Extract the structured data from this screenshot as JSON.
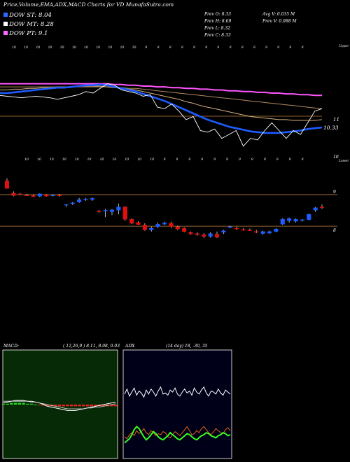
{
  "header": {
    "title": "Price,Volume,EMA,ADX,MACD Charts for VD MunafaSutra.com",
    "dow_st": "DOW ST: 8.04",
    "dow_mt": "DOW MT: 8.28",
    "dow_pt": "DOW PT: 9.1",
    "prev_o": "Prev O: 8.33",
    "prev_h": "Prev H: 8.69",
    "prev_l": "Prev L: 8.32",
    "prev_c": "Prev C: 8.33",
    "avg_v": "Avg V: 0.035 M",
    "prev_v": "Prev V: 0.988 M"
  },
  "colors": {
    "dow_st": "#2a6cff",
    "dow_mt": "#ffffff",
    "dow_pt": "#ff66ff",
    "up_candle": "#1e5cff",
    "down_candle": "#e01010",
    "price_line": "#c08040",
    "macd_bg": "#062a06",
    "macd_border": "#ffffff",
    "adx_bg": "#000018"
  },
  "upper_panel": {
    "top_label": "Upper",
    "bottom_label": "Lower",
    "right_labels": [
      "11",
      "10.33",
      "10"
    ],
    "top_ticks": [
      "10",
      "10",
      "10",
      "10",
      "10",
      "10",
      "10",
      "10",
      "10",
      "10",
      "10",
      "9",
      "9",
      "9",
      "9",
      "9",
      "9",
      "9",
      "9",
      "9",
      "9",
      "9",
      "9",
      "9",
      "9"
    ],
    "bottom_ticks": [
      "10",
      "10",
      "10",
      "10",
      "10",
      "10",
      "10",
      "10",
      "10",
      "10",
      "10",
      "9",
      "9",
      "9",
      "9",
      "9",
      "9",
      "9",
      "9",
      "9",
      "9",
      "9",
      "9"
    ]
  },
  "chart_data": [
    {
      "type": "line",
      "panel": "ema",
      "series": [
        {
          "name": "price",
          "values": [
            10.75,
            10.74,
            10.73,
            10.72,
            10.73,
            10.74,
            10.73,
            10.72,
            10.7,
            10.72,
            10.74,
            10.76,
            10.8,
            10.78,
            10.84,
            10.9,
            10.88,
            10.82,
            10.8,
            10.78,
            10.74,
            10.76,
            10.6,
            10.58,
            10.64,
            10.55,
            10.44,
            10.48,
            10.3,
            10.28,
            10.32,
            10.2,
            10.25,
            10.3,
            10.1,
            10.2,
            10.18,
            10.3,
            10.4,
            10.3,
            10.2,
            10.3,
            10.25,
            10.4,
            10.55,
            10.58
          ]
        },
        {
          "values": [
            10.78,
            10.78,
            10.79,
            10.8,
            10.81,
            10.82,
            10.83,
            10.84,
            10.85,
            10.85,
            10.86,
            10.87,
            10.88,
            10.88,
            10.89,
            10.88,
            10.86,
            10.84,
            10.82,
            10.8,
            10.77,
            10.74,
            10.71,
            10.68,
            10.64,
            10.6,
            10.56,
            10.52,
            10.48,
            10.44,
            10.41,
            10.38,
            10.35,
            10.33,
            10.31,
            10.29,
            10.28,
            10.27,
            10.27,
            10.27,
            10.28,
            10.29,
            10.3,
            10.32,
            10.33,
            10.34
          ]
        },
        {
          "values": [
            10.82,
            10.82,
            10.83,
            10.83,
            10.84,
            10.84,
            10.85,
            10.85,
            10.86,
            10.86,
            10.86,
            10.87,
            10.87,
            10.87,
            10.87,
            10.86,
            10.85,
            10.84,
            10.83,
            10.82,
            10.8,
            10.78,
            10.76,
            10.74,
            10.72,
            10.7,
            10.67,
            10.65,
            10.62,
            10.6,
            10.58,
            10.56,
            10.54,
            10.52,
            10.5,
            10.48,
            10.47,
            10.46,
            10.45,
            10.44,
            10.44,
            10.43,
            10.43,
            10.43,
            10.43,
            10.44
          ]
        },
        {
          "values": [
            10.86,
            10.86,
            10.86,
            10.86,
            10.86,
            10.86,
            10.86,
            10.86,
            10.86,
            10.86,
            10.86,
            10.86,
            10.86,
            10.86,
            10.86,
            10.86,
            10.85,
            10.85,
            10.84,
            10.84,
            10.83,
            10.82,
            10.81,
            10.8,
            10.79,
            10.78,
            10.77,
            10.76,
            10.75,
            10.74,
            10.73,
            10.72,
            10.71,
            10.7,
            10.69,
            10.68,
            10.67,
            10.66,
            10.65,
            10.64,
            10.63,
            10.62,
            10.61,
            10.6,
            10.59,
            10.58
          ]
        },
        {
          "values": [
            10.9,
            10.9,
            10.9,
            10.9,
            10.9,
            10.9,
            10.9,
            10.9,
            10.9,
            10.9,
            10.9,
            10.9,
            10.9,
            10.9,
            10.9,
            10.9,
            10.89,
            10.89,
            10.88,
            10.88,
            10.87,
            10.87,
            10.86,
            10.86,
            10.85,
            10.85,
            10.84,
            10.84,
            10.83,
            10.83,
            10.82,
            10.82,
            10.81,
            10.81,
            10.8,
            10.8,
            10.79,
            10.79,
            10.78,
            10.78,
            10.77,
            10.77,
            10.76,
            10.76,
            10.75,
            10.75
          ]
        }
      ],
      "ylim": [
        10.0,
        11.3
      ]
    },
    {
      "type": "candlestick",
      "panel": "price",
      "ylim": [
        7.7,
        9.75
      ],
      "candles": [
        {
          "o": 9.44,
          "h": 9.5,
          "l": 9.25,
          "c": 9.25
        },
        {
          "o": 9.14,
          "h": 9.18,
          "l": 9.06,
          "c": 9.08
        },
        {
          "o": 9.12,
          "h": 9.14,
          "l": 9.08,
          "c": 9.1
        },
        {
          "o": 9.09,
          "h": 9.12,
          "l": 9.07,
          "c": 9.08
        },
        {
          "o": 9.08,
          "h": 9.11,
          "l": 9.04,
          "c": 9.05
        },
        {
          "o": 9.06,
          "h": 9.13,
          "l": 9.04,
          "c": 9.12
        },
        {
          "o": 9.1,
          "h": 9.12,
          "l": 9.05,
          "c": 9.06
        },
        {
          "o": 9.07,
          "h": 9.1,
          "l": 9.06,
          "c": 9.09
        },
        {
          "o": 9.09,
          "h": 9.12,
          "l": 9.05,
          "c": 9.07
        },
        {
          "o": 8.85,
          "h": 8.87,
          "l": 8.8,
          "c": 8.86
        },
        {
          "o": 8.88,
          "h": 8.92,
          "l": 8.85,
          "c": 8.9
        },
        {
          "o": 8.92,
          "h": 9.02,
          "l": 8.9,
          "c": 8.98
        },
        {
          "o": 8.97,
          "h": 9.02,
          "l": 8.95,
          "c": 8.99
        },
        {
          "o": 8.98,
          "h": 9.03,
          "l": 8.95,
          "c": 9.01
        },
        {
          "o": 8.7,
          "h": 8.72,
          "l": 8.66,
          "c": 8.68
        },
        {
          "o": 8.7,
          "h": 8.75,
          "l": 8.55,
          "c": 8.72
        },
        {
          "o": 8.68,
          "h": 8.75,
          "l": 8.6,
          "c": 8.73
        },
        {
          "o": 8.72,
          "h": 8.88,
          "l": 8.62,
          "c": 8.8
        },
        {
          "o": 8.8,
          "h": 8.82,
          "l": 8.46,
          "c": 8.5
        },
        {
          "o": 8.5,
          "h": 8.52,
          "l": 8.38,
          "c": 8.4
        },
        {
          "o": 8.42,
          "h": 8.45,
          "l": 8.36,
          "c": 8.37
        },
        {
          "o": 8.36,
          "h": 8.4,
          "l": 8.22,
          "c": 8.24
        },
        {
          "o": 8.24,
          "h": 8.32,
          "l": 8.2,
          "c": 8.28
        },
        {
          "o": 8.32,
          "h": 8.42,
          "l": 8.28,
          "c": 8.38
        },
        {
          "o": 8.38,
          "h": 8.44,
          "l": 8.36,
          "c": 8.41
        },
        {
          "o": 8.4,
          "h": 8.44,
          "l": 8.28,
          "c": 8.32
        },
        {
          "o": 8.32,
          "h": 8.34,
          "l": 8.24,
          "c": 8.26
        },
        {
          "o": 8.28,
          "h": 8.3,
          "l": 8.18,
          "c": 8.2
        },
        {
          "o": 8.18,
          "h": 8.2,
          "l": 8.12,
          "c": 8.14
        },
        {
          "o": 8.15,
          "h": 8.18,
          "l": 8.1,
          "c": 8.12
        },
        {
          "o": 8.12,
          "h": 8.16,
          "l": 8.04,
          "c": 8.08
        },
        {
          "o": 8.08,
          "h": 8.18,
          "l": 8.05,
          "c": 8.15
        },
        {
          "o": 8.14,
          "h": 8.2,
          "l": 8.04,
          "c": 8.06
        },
        {
          "o": 8.18,
          "h": 8.24,
          "l": 8.14,
          "c": 8.22
        },
        {
          "o": 8.3,
          "h": 8.34,
          "l": 8.28,
          "c": 8.32
        },
        {
          "o": 8.28,
          "h": 8.32,
          "l": 8.24,
          "c": 8.26
        },
        {
          "o": 8.25,
          "h": 8.28,
          "l": 8.22,
          "c": 8.24
        },
        {
          "o": 8.24,
          "h": 8.27,
          "l": 8.21,
          "c": 8.22
        },
        {
          "o": 8.2,
          "h": 8.24,
          "l": 8.16,
          "c": 8.18
        },
        {
          "o": 8.15,
          "h": 8.22,
          "l": 8.12,
          "c": 8.2
        },
        {
          "o": 8.16,
          "h": 8.22,
          "l": 8.14,
          "c": 8.2
        },
        {
          "o": 8.2,
          "h": 8.28,
          "l": 8.18,
          "c": 8.26
        },
        {
          "o": 8.38,
          "h": 8.52,
          "l": 8.36,
          "c": 8.5
        },
        {
          "o": 8.46,
          "h": 8.54,
          "l": 8.42,
          "c": 8.52
        },
        {
          "o": 8.45,
          "h": 8.52,
          "l": 8.42,
          "c": 8.5
        },
        {
          "o": 8.47,
          "h": 8.5,
          "l": 8.44,
          "c": 8.49
        },
        {
          "o": 8.49,
          "h": 8.64,
          "l": 8.47,
          "c": 8.62
        },
        {
          "o": 8.72,
          "h": 8.8,
          "l": 8.68,
          "c": 8.78
        },
        {
          "o": 8.8,
          "h": 8.86,
          "l": 8.75,
          "c": 8.78
        }
      ],
      "hlines": [
        9.1,
        8.33
      ],
      "right_labels": [
        "9",
        "8"
      ]
    },
    {
      "type": "line",
      "panel": "macd",
      "title": "MACD:",
      "params": "( 12,26,9 ) 8.11, 8.08, 0.03",
      "ylim": [
        -1,
        1
      ],
      "series": [
        {
          "values": [
            0.02,
            0.03,
            0.04,
            0.05,
            0.05,
            0.05,
            0.04,
            0.04,
            0.03,
            0.02,
            0.0,
            -0.02,
            -0.03,
            -0.04,
            -0.05,
            -0.06,
            -0.07,
            -0.07,
            -0.07,
            -0.06,
            -0.05,
            -0.04,
            -0.03,
            -0.02,
            -0.01,
            0.0,
            0.01,
            0.02,
            0.03
          ]
        },
        {
          "values": [
            0.04,
            0.04,
            0.04,
            0.04,
            0.04,
            0.04,
            0.04,
            0.03,
            0.03,
            0.02,
            0.01,
            0.0,
            -0.01,
            -0.02,
            -0.03,
            -0.04,
            -0.05,
            -0.05,
            -0.05,
            -0.05,
            -0.05,
            -0.04,
            -0.04,
            -0.03,
            -0.03,
            -0.02,
            -0.01,
            0.0,
            0.01
          ]
        }
      ],
      "histogram": [
        0.01,
        0.01,
        0.02,
        0.02,
        0.02,
        0.02,
        0.01,
        0.01,
        0.0,
        -0.01,
        -0.01,
        -0.02,
        -0.02,
        -0.02,
        -0.02,
        -0.02,
        -0.02,
        -0.02,
        -0.02,
        -0.02,
        -0.02,
        -0.02,
        -0.02,
        -0.02,
        -0.02,
        -0.02,
        -0.02,
        -0.02,
        -0.02
      ]
    },
    {
      "type": "line",
      "panel": "adx",
      "title": "ADX",
      "params": "(14 day) 18, -30, 35",
      "ylim": [
        0,
        100
      ],
      "series": [
        {
          "name": "+DI",
          "values": [
            60,
            65,
            58,
            62,
            66,
            59,
            63,
            61,
            57,
            64,
            60,
            65,
            62,
            58,
            63,
            67,
            60,
            61,
            59,
            64,
            62,
            66,
            60,
            58,
            62,
            65,
            61,
            63,
            59,
            66,
            62,
            60,
            64,
            67,
            61,
            58,
            63,
            62,
            60,
            65,
            61,
            59,
            64,
            62,
            60
          ]
        },
        {
          "name": "-DI",
          "values": [
            18,
            16,
            20,
            22,
            19,
            24,
            21,
            23,
            26,
            22,
            20,
            24,
            22,
            19,
            21,
            20,
            23,
            22,
            18,
            17,
            20,
            23,
            21,
            19,
            22,
            25,
            28,
            24,
            20,
            21,
            24,
            22,
            26,
            28,
            25,
            22,
            20,
            23,
            26,
            24,
            22,
            21,
            25,
            27,
            24
          ]
        },
        {
          "name": "ADX",
          "values": [
            12,
            14,
            16,
            20,
            25,
            28,
            26,
            22,
            18,
            15,
            17,
            20,
            23,
            21,
            18,
            16,
            15,
            17,
            19,
            22,
            20,
            18,
            16,
            15,
            17,
            19,
            21,
            20,
            18,
            16,
            15,
            17,
            19,
            20,
            22,
            21,
            19,
            18,
            17,
            19,
            20,
            22,
            21,
            19,
            20
          ]
        }
      ]
    }
  ]
}
